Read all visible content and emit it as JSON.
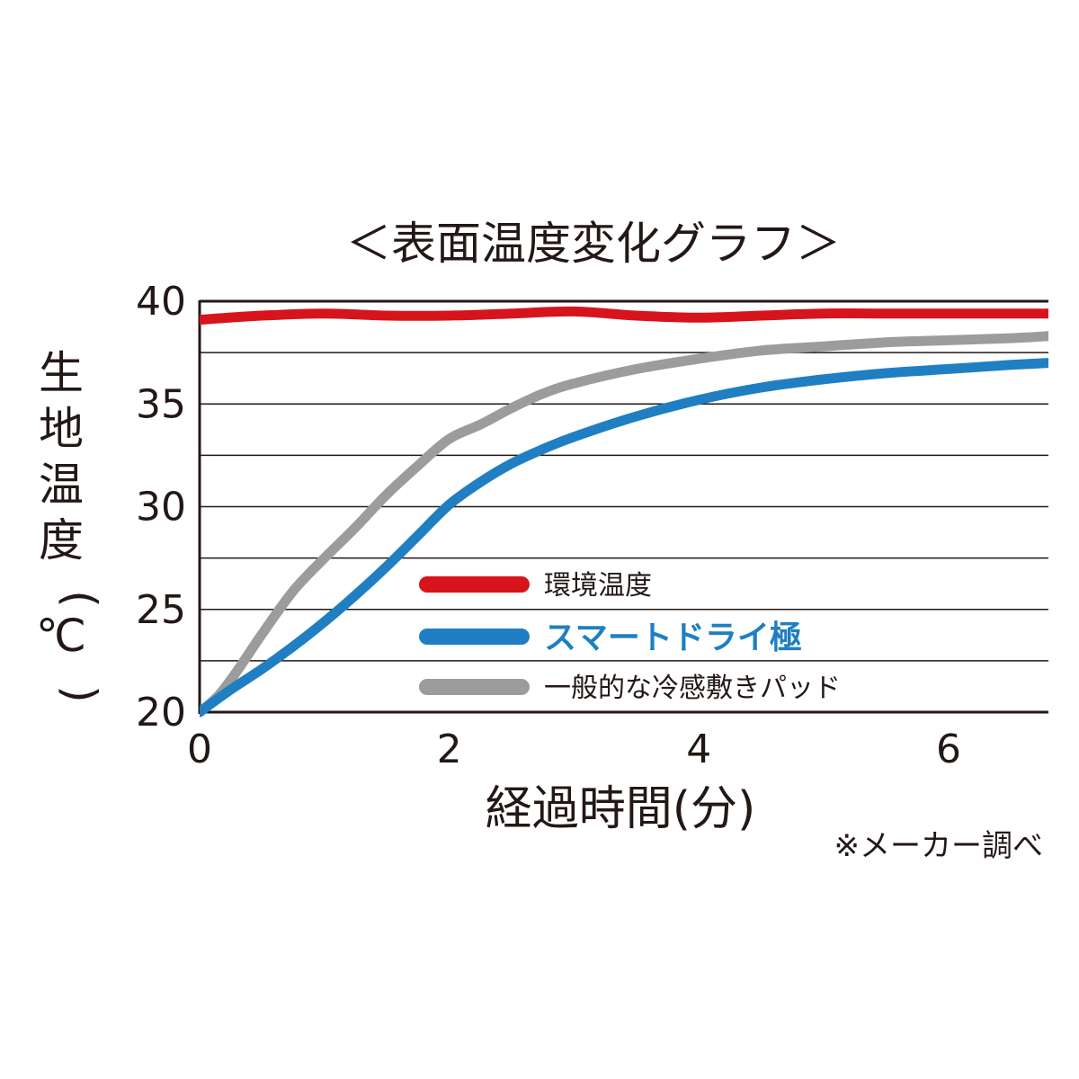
{
  "chart_data": {
    "type": "line",
    "title": "＜表面温度変化グラフ＞",
    "xlabel": "経過時間(分)",
    "ylabel": "生地温度(℃)",
    "note": "※メーカー調べ",
    "xlim": [
      0,
      6.8
    ],
    "ylim": [
      20,
      40
    ],
    "xticks": [
      "0",
      "2",
      "4",
      "6"
    ],
    "xtick_values": [
      0,
      2,
      4,
      6
    ],
    "yticks": [
      "20",
      "25",
      "30",
      "35",
      "40"
    ],
    "ytick_values": [
      20,
      25,
      30,
      35,
      40
    ],
    "gridlines": [
      22.5,
      25,
      27.5,
      30,
      32.5,
      35,
      37.5,
      40
    ],
    "grid": true,
    "legend_position": "center-right",
    "series": [
      {
        "name": "環境温度",
        "color": "#d7141b",
        "bold": false,
        "x": [
          0,
          0.5,
          1.0,
          1.5,
          2.0,
          2.5,
          3.0,
          3.5,
          4.0,
          4.5,
          5.0,
          5.5,
          6.0,
          6.5,
          6.8
        ],
        "y": [
          39.1,
          39.3,
          39.4,
          39.3,
          39.3,
          39.4,
          39.5,
          39.3,
          39.2,
          39.3,
          39.4,
          39.4,
          39.4,
          39.4,
          39.4
        ]
      },
      {
        "name": "スマートドライ極",
        "color": "#1f7fc2",
        "bold": true,
        "x": [
          0,
          0.25,
          0.5,
          0.75,
          1.0,
          1.25,
          1.5,
          1.75,
          2.0,
          2.25,
          2.5,
          2.75,
          3.0,
          3.5,
          4.0,
          4.5,
          5.0,
          5.5,
          6.0,
          6.5,
          6.8
        ],
        "y": [
          20,
          21.1,
          22.1,
          23.2,
          24.4,
          25.7,
          27.1,
          28.6,
          30.1,
          31.2,
          32.1,
          32.8,
          33.4,
          34.4,
          35.2,
          35.8,
          36.2,
          36.5,
          36.7,
          36.9,
          37.0
        ]
      },
      {
        "name": "一般的な冷感敷きパッド",
        "color": "#9c9c9c",
        "bold": false,
        "x": [
          0,
          0.15,
          0.3,
          0.5,
          0.75,
          1.0,
          1.25,
          1.5,
          1.75,
          2.0,
          2.25,
          2.5,
          2.75,
          3.0,
          3.5,
          4.0,
          4.5,
          5.0,
          5.5,
          6.0,
          6.5,
          6.8
        ],
        "y": [
          20,
          20.8,
          22.0,
          23.8,
          25.9,
          27.5,
          29.0,
          30.6,
          32.0,
          33.3,
          34.0,
          34.8,
          35.5,
          36.0,
          36.7,
          37.2,
          37.6,
          37.8,
          38.0,
          38.1,
          38.2,
          38.3
        ]
      }
    ]
  }
}
